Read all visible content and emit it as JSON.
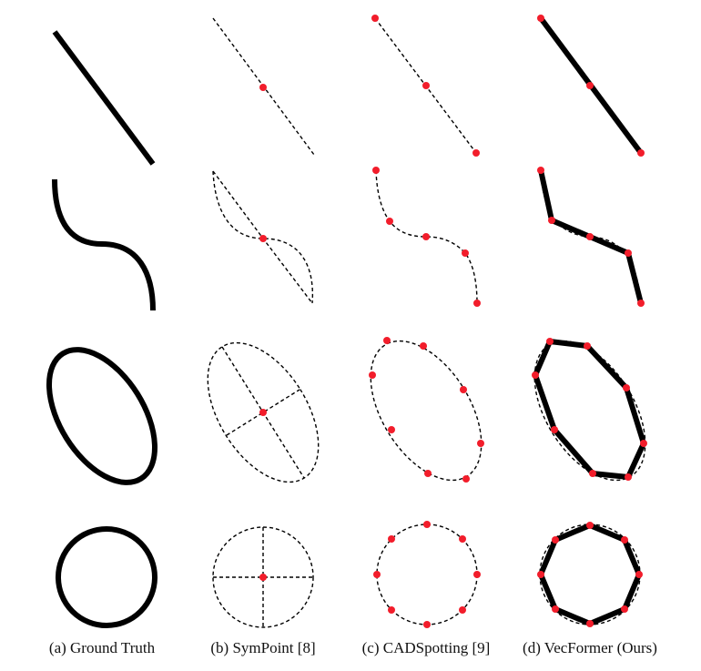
{
  "captions": {
    "ground_truth": "(a) Ground Truth",
    "sympoint": "(b) SymPoint [8]",
    "cadspotting": "(c) CADSpotting [9]",
    "vecformer": "(d) VecFormer (Ours)"
  },
  "colors": {
    "stroke": "#000000",
    "point": "#f21d2b",
    "background": "#ffffff"
  }
}
